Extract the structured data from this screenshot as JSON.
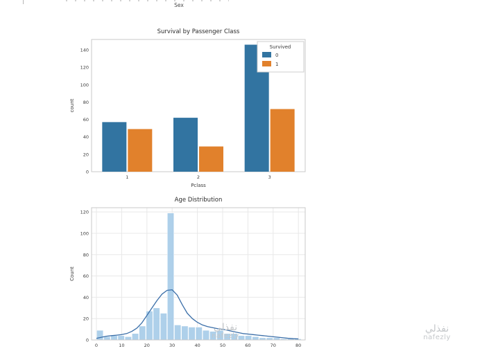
{
  "previous_chart": {
    "xlabel": "Sex"
  },
  "watermark": {
    "arabic": "نفذلي",
    "latin": "nafezly"
  },
  "chart_data": [
    {
      "type": "bar",
      "title": "Survival by Passenger Class",
      "xlabel": "Pclass",
      "ylabel": "count",
      "categories": [
        "1",
        "2",
        "3"
      ],
      "series": [
        {
          "name": "0",
          "color": "#3274a1",
          "values": [
            57,
            62,
            146
          ]
        },
        {
          "name": "1",
          "color": "#e1812c",
          "values": [
            49,
            29,
            72
          ]
        }
      ],
      "legend": {
        "title": "Survived",
        "position": "upper right",
        "entries": [
          {
            "label": "0",
            "color": "#3274a1"
          },
          {
            "label": "1",
            "color": "#e1812c"
          }
        ]
      },
      "yticks": [
        0,
        20,
        40,
        60,
        80,
        100,
        120,
        140
      ],
      "ylim": [
        0,
        152
      ],
      "grid": false
    },
    {
      "type": "area",
      "subtype": "histogram-with-kde",
      "title": "Age Distribution",
      "xlabel": "Age",
      "ylabel": "Count",
      "bar_color": "#a5cbe8",
      "kde_color": "#3a6ea8",
      "bin_width": 2.8,
      "bins": [
        [
          1.4,
          9
        ],
        [
          4.2,
          3
        ],
        [
          7,
          4
        ],
        [
          9.8,
          4
        ],
        [
          12.6,
          3
        ],
        [
          15.4,
          6
        ],
        [
          18.2,
          13
        ],
        [
          21,
          27
        ],
        [
          23.8,
          30
        ],
        [
          26.6,
          25
        ],
        [
          29.4,
          119
        ],
        [
          32.2,
          14
        ],
        [
          35,
          13
        ],
        [
          37.8,
          12
        ],
        [
          40.6,
          12
        ],
        [
          43.4,
          9
        ],
        [
          46.2,
          8
        ],
        [
          49,
          9
        ],
        [
          51.8,
          6
        ],
        [
          54.6,
          6
        ],
        [
          57.4,
          4
        ],
        [
          60.2,
          4
        ],
        [
          63,
          3
        ],
        [
          65.8,
          2
        ],
        [
          68.6,
          2
        ],
        [
          71.4,
          2
        ],
        [
          74.2,
          1
        ],
        [
          77,
          1
        ],
        [
          79.8,
          1
        ]
      ],
      "kde": [
        [
          0,
          1.5
        ],
        [
          2,
          2.5
        ],
        [
          4,
          3.5
        ],
        [
          6,
          4
        ],
        [
          8,
          4.5
        ],
        [
          10,
          5
        ],
        [
          12,
          6
        ],
        [
          14,
          8
        ],
        [
          16,
          11
        ],
        [
          18,
          16
        ],
        [
          20,
          23
        ],
        [
          22,
          30
        ],
        [
          24,
          37
        ],
        [
          26,
          43
        ],
        [
          28,
          46.5
        ],
        [
          30,
          47
        ],
        [
          32,
          42
        ],
        [
          34,
          33
        ],
        [
          36,
          25
        ],
        [
          38,
          20
        ],
        [
          40,
          16.5
        ],
        [
          42,
          14
        ],
        [
          44,
          12.5
        ],
        [
          46,
          11.5
        ],
        [
          48,
          10.5
        ],
        [
          50,
          10
        ],
        [
          52,
          9
        ],
        [
          54,
          8
        ],
        [
          56,
          7
        ],
        [
          58,
          6
        ],
        [
          60,
          5.5
        ],
        [
          62,
          5
        ],
        [
          64,
          4.5
        ],
        [
          66,
          4
        ],
        [
          68,
          3.5
        ],
        [
          70,
          3
        ],
        [
          72,
          2.5
        ],
        [
          74,
          2
        ],
        [
          76,
          1.5
        ],
        [
          78,
          1.2
        ],
        [
          80,
          1
        ]
      ],
      "xticks": [
        0,
        10,
        20,
        30,
        40,
        50,
        60,
        70,
        80
      ],
      "yticks": [
        0,
        20,
        40,
        60,
        80,
        100,
        120
      ],
      "xlim": [
        0,
        83
      ],
      "ylim": [
        0,
        124
      ],
      "grid": true
    }
  ]
}
